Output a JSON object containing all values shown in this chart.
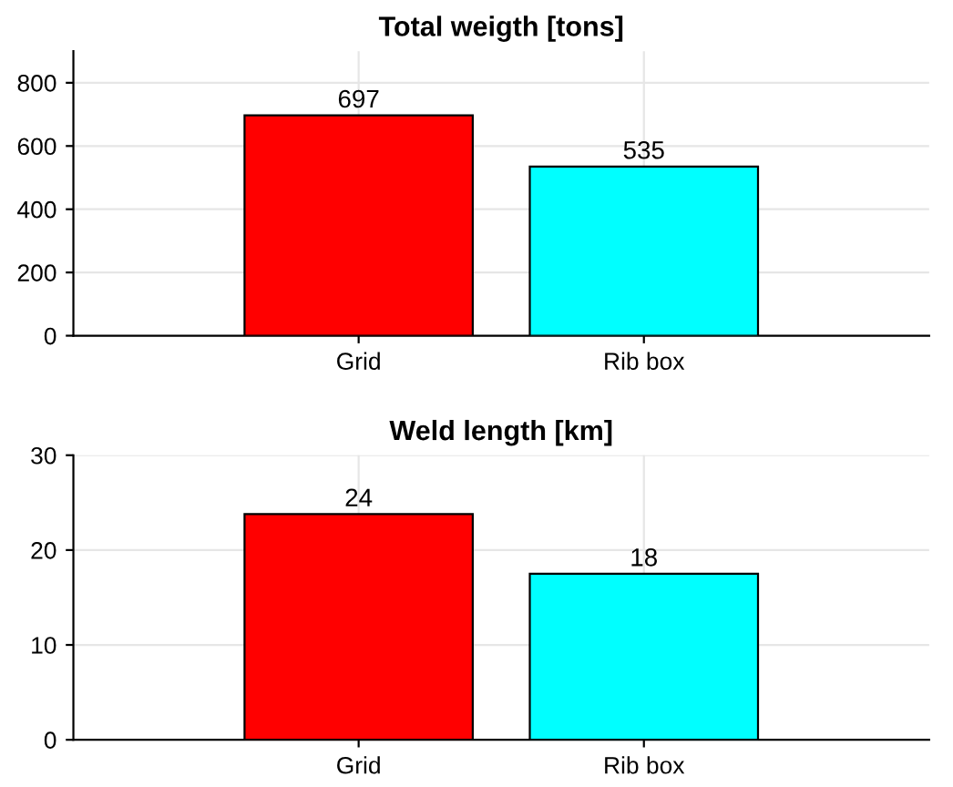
{
  "chart_data": [
    {
      "type": "bar",
      "title": "Total weigth [tons]",
      "categories": [
        "Grid",
        "Rib box"
      ],
      "values": [
        697,
        535
      ],
      "colors": [
        "#ff0000",
        "#00ffff"
      ],
      "ylim": [
        0,
        900
      ],
      "yticks": [
        0,
        200,
        400,
        600,
        800
      ],
      "grid": true,
      "data_labels": true
    },
    {
      "type": "bar",
      "title": "Weld length [km]",
      "categories": [
        "Grid",
        "Rib box"
      ],
      "values": [
        23.8,
        17.5
      ],
      "value_labels": [
        "24",
        "18"
      ],
      "colors": [
        "#ff0000",
        "#00ffff"
      ],
      "ylim": [
        0,
        30
      ],
      "yticks": [
        0,
        10,
        20,
        30
      ],
      "grid": true
    }
  ]
}
